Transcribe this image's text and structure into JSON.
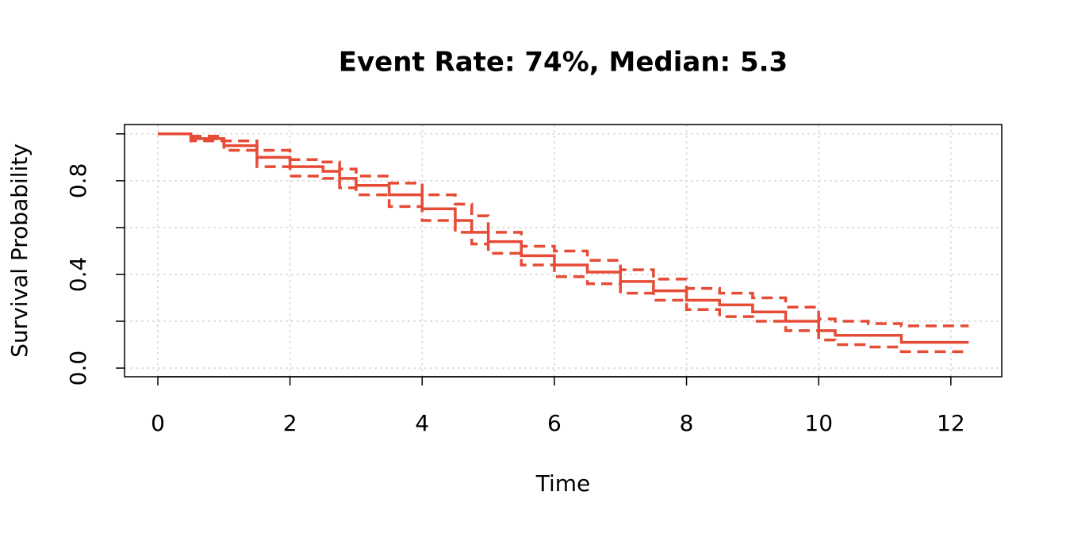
{
  "chart_data": {
    "type": "line",
    "step": true,
    "title": "Event Rate: 74%, Median: 5.3",
    "x_label": "Time",
    "y_label": "Survival Probability",
    "x": [
      0,
      0.5,
      1.0,
      1.5,
      2.0,
      2.5,
      2.75,
      3.0,
      3.5,
      4.0,
      4.5,
      4.75,
      5.0,
      5.5,
      6.0,
      6.5,
      7.0,
      7.5,
      8.0,
      8.5,
      9.0,
      9.5,
      10.0,
      10.25,
      10.75,
      11.25,
      12.27
    ],
    "series": [
      {
        "color": "#e64b35",
        "dashed": false,
        "values": [
          1.0,
          0.98,
          0.95,
          0.9,
          0.86,
          0.84,
          0.81,
          0.78,
          0.74,
          0.68,
          0.63,
          0.58,
          0.54,
          0.48,
          0.44,
          0.41,
          0.37,
          0.33,
          0.29,
          0.27,
          0.24,
          0.2,
          0.16,
          0.14,
          0.14,
          0.11,
          0.11
        ]
      },
      {
        "color": "#e64b35",
        "dashed": true,
        "values": [
          1.0,
          0.99,
          0.97,
          0.93,
          0.89,
          0.88,
          0.85,
          0.82,
          0.79,
          0.74,
          0.7,
          0.65,
          0.58,
          0.52,
          0.5,
          0.46,
          0.42,
          0.38,
          0.34,
          0.32,
          0.3,
          0.26,
          0.21,
          0.2,
          0.19,
          0.18,
          0.18
        ]
      },
      {
        "color": "#e64b35",
        "dashed": true,
        "values": [
          1.0,
          0.97,
          0.93,
          0.86,
          0.82,
          0.81,
          0.77,
          0.74,
          0.69,
          0.63,
          0.58,
          0.53,
          0.49,
          0.44,
          0.39,
          0.36,
          0.32,
          0.29,
          0.25,
          0.22,
          0.2,
          0.16,
          0.12,
          0.1,
          0.09,
          0.07,
          0.07
        ]
      }
    ],
    "xlim": [
      -0.504,
      12.77
    ],
    "xticks": [
      0,
      2,
      4,
      6,
      8,
      10,
      12
    ],
    "ylim": [
      -0.037,
      1.04
    ],
    "yticks": [
      {
        "value": 0,
        "label": "0.0"
      },
      {
        "value": 0.2,
        "label": null
      },
      {
        "value": 0.4,
        "label": "0.4"
      },
      {
        "value": 0.6,
        "label": null
      },
      {
        "value": 0.8,
        "label": "0.8"
      },
      {
        "value": 1.0,
        "label": null
      }
    ],
    "grid": true
  }
}
